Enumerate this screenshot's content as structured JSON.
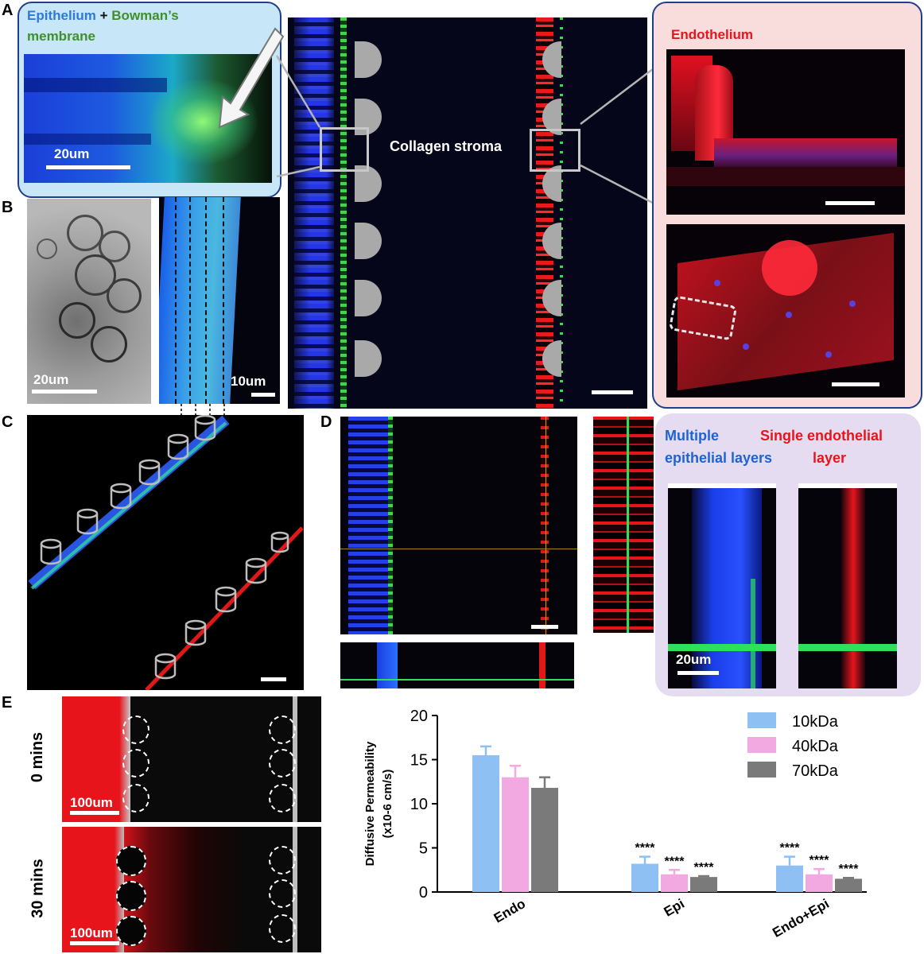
{
  "panel_labels": {
    "a": "A",
    "b": "B",
    "c": "C",
    "d": "D",
    "e": "E"
  },
  "panel_a": {
    "callout_epithelium": "Epithelium",
    "callout_plus": " + ",
    "callout_bowman_line1": "Bowman’s",
    "callout_bowman_line2": "membrane",
    "scale_left": "20um",
    "stroma_label": "Collagen stroma",
    "endothelium_label": "Endothelium"
  },
  "panel_b": {
    "scale_brightfield": "20um",
    "scale_fluor": "10um"
  },
  "panel_d": {
    "multiple_line1": "Multiple",
    "multiple_line2": "epithelial layers",
    "single_line1": "Single endothelial",
    "single_line2": "layer",
    "scale": "20um"
  },
  "panel_e": {
    "row1_label": "0 mins",
    "row2_label": "30 mins",
    "scale1": "100um",
    "scale2": "100um"
  },
  "colors": {
    "epithelium_blue": "#2f7ad9",
    "bowman_green": "#3f8f2a",
    "endothelium_red": "#e8141c",
    "callout_blue_bg": "#c7e6f7",
    "callout_pink_bg": "#f9dcdc",
    "callout_purple_bg": "#e6dcf1",
    "series_10kDa": "#8fc0f4",
    "series_40kDa": "#f2a8e0",
    "series_70kDa": "#7a7a7a"
  },
  "chart_data": {
    "type": "bar",
    "ylabel_line1": "Diffusive Permeability",
    "ylabel_line2": "(x10-6 cm/s)",
    "categories": [
      "Endo",
      "Epi",
      "Endo+Epi"
    ],
    "ylim": [
      0,
      20
    ],
    "yticks": [
      0,
      5,
      10,
      15,
      20
    ],
    "legend_position": "top-right",
    "significance_label": "****",
    "series": [
      {
        "name": "10kDa",
        "color": "#8fc0f4",
        "values": [
          15.5,
          3.2,
          3.0
        ],
        "errors": [
          1.0,
          0.8,
          1.0
        ],
        "sig": [
          "",
          "****",
          "****"
        ]
      },
      {
        "name": "40kDa",
        "color": "#f2a8e0",
        "values": [
          13.0,
          2.0,
          2.0
        ],
        "errors": [
          1.3,
          0.5,
          0.6
        ],
        "sig": [
          "",
          "****",
          "****"
        ]
      },
      {
        "name": "70kDa",
        "color": "#7a7a7a",
        "values": [
          11.8,
          1.7,
          1.5
        ],
        "errors": [
          1.2,
          0.1,
          0.1
        ],
        "sig": [
          "",
          "****",
          "****"
        ]
      }
    ]
  }
}
